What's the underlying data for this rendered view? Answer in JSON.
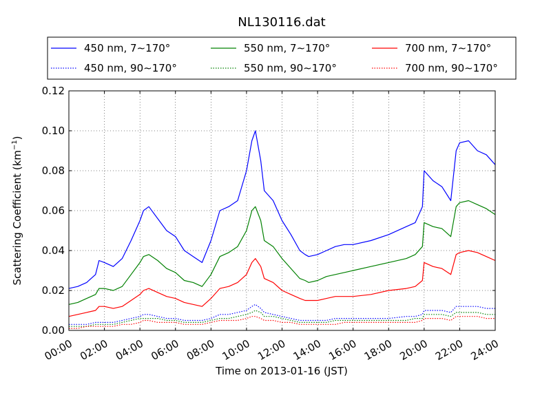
{
  "chart_data": {
    "type": "line",
    "title": "NL130116.dat",
    "xlabel": "Time on 2013-01-16 (JST)",
    "ylabel_main": "Scattering Coefficient (km",
    "ylabel_sup": "−1",
    "ylabel_end": ")",
    "xlim": [
      0,
      24
    ],
    "ylim": [
      0,
      0.12
    ],
    "grid": true,
    "legend_position": "top",
    "x_ticks": [
      0,
      2,
      4,
      6,
      8,
      10,
      12,
      14,
      16,
      18,
      20,
      22,
      24
    ],
    "x_tick_labels": [
      "00:00",
      "02:00",
      "04:00",
      "06:00",
      "08:00",
      "10:00",
      "12:00",
      "14:00",
      "16:00",
      "18:00",
      "20:00",
      "22:00",
      "24:00"
    ],
    "y_ticks": [
      0,
      0.02,
      0.04,
      0.06,
      0.08,
      0.1,
      0.12
    ],
    "y_tick_labels": [
      "0.00",
      "0.02",
      "0.04",
      "0.06",
      "0.08",
      "0.10",
      "0.12"
    ],
    "x_hours": [
      0,
      0.5,
      1,
      1.5,
      1.7,
      2,
      2.5,
      3,
      3.5,
      4,
      4.2,
      4.5,
      5,
      5.5,
      6,
      6.5,
      7,
      7.5,
      8,
      8.5,
      9,
      9.5,
      10,
      10.3,
      10.5,
      10.8,
      11,
      11.5,
      12,
      12.5,
      13,
      13.3,
      13.5,
      14,
      14.5,
      15,
      15.5,
      16,
      17,
      18,
      19,
      19.5,
      19.9,
      20,
      20.5,
      21,
      21.5,
      21.8,
      22,
      22.5,
      23,
      23.5,
      24
    ],
    "series": [
      {
        "name": "450 nm, 7∼170°",
        "color": "#0000ff",
        "style": "solid",
        "values": [
          0.021,
          0.022,
          0.024,
          0.028,
          0.035,
          0.034,
          0.032,
          0.036,
          0.045,
          0.055,
          0.06,
          0.062,
          0.056,
          0.05,
          0.047,
          0.04,
          0.037,
          0.034,
          0.045,
          0.06,
          0.062,
          0.065,
          0.08,
          0.095,
          0.1,
          0.085,
          0.07,
          0.065,
          0.055,
          0.048,
          0.04,
          0.038,
          0.037,
          0.038,
          0.04,
          0.042,
          0.043,
          0.043,
          0.045,
          0.048,
          0.052,
          0.054,
          0.062,
          0.08,
          0.075,
          0.072,
          0.065,
          0.09,
          0.094,
          0.095,
          0.09,
          0.088,
          0.083
        ]
      },
      {
        "name": "550 nm, 7∼170°",
        "color": "#008000",
        "style": "solid",
        "values": [
          0.013,
          0.014,
          0.016,
          0.018,
          0.021,
          0.021,
          0.02,
          0.022,
          0.028,
          0.034,
          0.037,
          0.038,
          0.035,
          0.031,
          0.029,
          0.025,
          0.024,
          0.022,
          0.028,
          0.037,
          0.039,
          0.042,
          0.05,
          0.06,
          0.062,
          0.055,
          0.045,
          0.042,
          0.036,
          0.031,
          0.026,
          0.025,
          0.024,
          0.025,
          0.027,
          0.028,
          0.029,
          0.03,
          0.032,
          0.034,
          0.036,
          0.038,
          0.042,
          0.054,
          0.052,
          0.051,
          0.047,
          0.062,
          0.064,
          0.065,
          0.063,
          0.061,
          0.058
        ]
      },
      {
        "name": "700 nm, 7∼170°",
        "color": "#ff0000",
        "style": "solid",
        "values": [
          0.007,
          0.008,
          0.009,
          0.01,
          0.012,
          0.012,
          0.011,
          0.012,
          0.015,
          0.018,
          0.02,
          0.021,
          0.019,
          0.017,
          0.016,
          0.014,
          0.013,
          0.012,
          0.016,
          0.021,
          0.022,
          0.024,
          0.028,
          0.034,
          0.036,
          0.032,
          0.026,
          0.024,
          0.02,
          0.018,
          0.016,
          0.015,
          0.015,
          0.015,
          0.016,
          0.017,
          0.017,
          0.017,
          0.018,
          0.02,
          0.021,
          0.022,
          0.025,
          0.034,
          0.032,
          0.031,
          0.028,
          0.038,
          0.039,
          0.04,
          0.039,
          0.037,
          0.035
        ]
      },
      {
        "name": "450 nm, 90∼170°",
        "color": "#0000ff",
        "style": "dotted",
        "values": [
          0.003,
          0.003,
          0.003,
          0.004,
          0.004,
          0.004,
          0.004,
          0.005,
          0.006,
          0.007,
          0.008,
          0.008,
          0.007,
          0.006,
          0.006,
          0.005,
          0.005,
          0.005,
          0.006,
          0.008,
          0.008,
          0.009,
          0.01,
          0.012,
          0.013,
          0.011,
          0.009,
          0.008,
          0.007,
          0.006,
          0.005,
          0.005,
          0.005,
          0.005,
          0.005,
          0.006,
          0.006,
          0.006,
          0.006,
          0.006,
          0.007,
          0.007,
          0.008,
          0.01,
          0.01,
          0.01,
          0.009,
          0.012,
          0.012,
          0.012,
          0.012,
          0.011,
          0.011
        ]
      },
      {
        "name": "550 nm, 90∼170°",
        "color": "#008000",
        "style": "dotted",
        "values": [
          0.002,
          0.002,
          0.002,
          0.003,
          0.003,
          0.003,
          0.003,
          0.004,
          0.005,
          0.006,
          0.006,
          0.006,
          0.006,
          0.005,
          0.005,
          0.004,
          0.004,
          0.004,
          0.005,
          0.006,
          0.006,
          0.007,
          0.008,
          0.009,
          0.01,
          0.009,
          0.007,
          0.007,
          0.006,
          0.005,
          0.004,
          0.004,
          0.004,
          0.004,
          0.004,
          0.005,
          0.005,
          0.005,
          0.005,
          0.005,
          0.005,
          0.006,
          0.006,
          0.008,
          0.008,
          0.008,
          0.007,
          0.009,
          0.009,
          0.009,
          0.009,
          0.008,
          0.008
        ]
      },
      {
        "name": "700 nm, 90∼170°",
        "color": "#ff0000",
        "style": "dotted",
        "values": [
          0.001,
          0.001,
          0.002,
          0.002,
          0.002,
          0.002,
          0.002,
          0.003,
          0.003,
          0.004,
          0.005,
          0.005,
          0.004,
          0.004,
          0.004,
          0.003,
          0.003,
          0.003,
          0.004,
          0.005,
          0.005,
          0.005,
          0.006,
          0.007,
          0.007,
          0.006,
          0.005,
          0.005,
          0.004,
          0.004,
          0.003,
          0.003,
          0.003,
          0.003,
          0.003,
          0.003,
          0.004,
          0.004,
          0.004,
          0.004,
          0.004,
          0.004,
          0.005,
          0.006,
          0.006,
          0.006,
          0.005,
          0.007,
          0.007,
          0.007,
          0.007,
          0.006,
          0.006
        ]
      }
    ],
    "legend_order": [
      0,
      1,
      2,
      3,
      4,
      5
    ]
  }
}
